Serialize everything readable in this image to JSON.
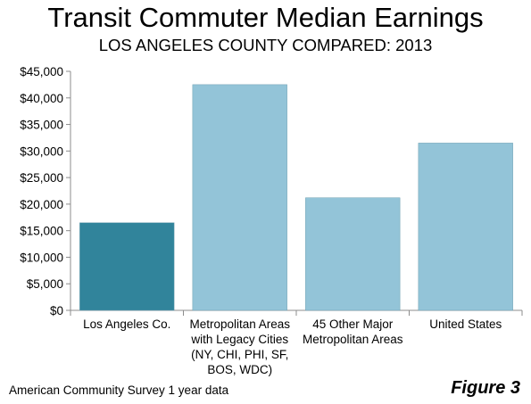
{
  "title": "Transit Commuter Median Earnings",
  "subtitle": "LOS ANGELES COUNTY COMPARED: 2013",
  "footer": {
    "source": "American Community Survey 1 year data",
    "figure_label": "Figure 3"
  },
  "chart_data": {
    "type": "bar",
    "title": "Transit Commuter Median Earnings",
    "subtitle": "LOS ANGELES COUNTY COMPARED: 2013",
    "xlabel": "",
    "ylabel": "",
    "ylim": [
      0,
      45000
    ],
    "yticks": [
      0,
      5000,
      10000,
      15000,
      20000,
      25000,
      30000,
      35000,
      40000,
      45000
    ],
    "ytick_labels": [
      "$0",
      "$5,000",
      "$10,000",
      "$15,000",
      "$20,000",
      "$25,000",
      "$30,000",
      "$35,000",
      "$40,000",
      "$45,000"
    ],
    "categories": [
      [
        "Los Angeles Co."
      ],
      [
        "Metropolitan Areas",
        "with Legacy Cities",
        "(NY, CHI, PHI, SF,",
        "BOS, WDC)"
      ],
      [
        "45 Other Major",
        "Metropolitan Areas"
      ],
      [
        "United States"
      ]
    ],
    "values": [
      16500,
      42500,
      21200,
      31500
    ],
    "bar_colors": [
      "#31849b",
      "#93c4d8",
      "#93c4d8",
      "#93c4d8"
    ],
    "grid": false,
    "legend": "none"
  }
}
